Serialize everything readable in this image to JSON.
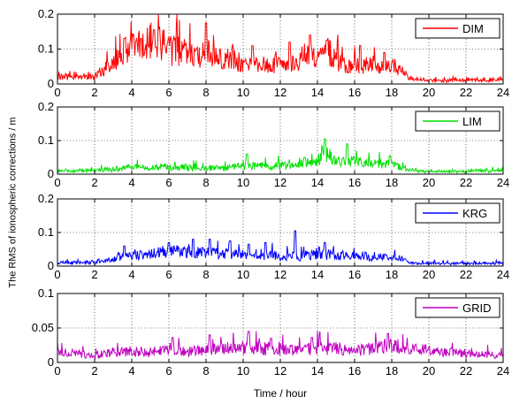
{
  "figure": {
    "ylabel": "The RMS of ionospheric corrections / m",
    "xlabel": "Time / hour"
  },
  "chart_data": [
    {
      "type": "line",
      "series": [
        {
          "name": "DIM",
          "color": "#ff0000"
        }
      ],
      "xlim": [
        0,
        24
      ],
      "ylim": [
        0,
        0.2
      ],
      "xticks": [
        0,
        2,
        4,
        6,
        8,
        10,
        12,
        14,
        16,
        18,
        20,
        22,
        24
      ],
      "yticks": [
        0,
        0.1,
        0.2
      ],
      "ytick_labels": [
        "0",
        "0.1",
        "0.2"
      ],
      "grid": true,
      "legend_position": "top-right",
      "envelope": [
        [
          0,
          0.02
        ],
        [
          1,
          0.02
        ],
        [
          2,
          0.02
        ],
        [
          2.5,
          0.04
        ],
        [
          3,
          0.06
        ],
        [
          3.5,
          0.1
        ],
        [
          4,
          0.1
        ],
        [
          4.5,
          0.11
        ],
        [
          5,
          0.13
        ],
        [
          5.5,
          0.12
        ],
        [
          6,
          0.1
        ],
        [
          6.5,
          0.09
        ],
        [
          7,
          0.09
        ],
        [
          7.5,
          0.07
        ],
        [
          8,
          0.1
        ],
        [
          8.5,
          0.08
        ],
        [
          9,
          0.07
        ],
        [
          9.5,
          0.08
        ],
        [
          10,
          0.05
        ],
        [
          10.5,
          0.06
        ],
        [
          11,
          0.06
        ],
        [
          11.5,
          0.05
        ],
        [
          12,
          0.06
        ],
        [
          12.5,
          0.05
        ],
        [
          13,
          0.07
        ],
        [
          13.5,
          0.09
        ],
        [
          14,
          0.06
        ],
        [
          14.5,
          0.1
        ],
        [
          15,
          0.07
        ],
        [
          15.5,
          0.05
        ],
        [
          16,
          0.06
        ],
        [
          16.5,
          0.05
        ],
        [
          17,
          0.06
        ],
        [
          17.5,
          0.05
        ],
        [
          18,
          0.05
        ],
        [
          18.5,
          0.04
        ],
        [
          19,
          0.015
        ],
        [
          20,
          0.01
        ],
        [
          21,
          0.01
        ],
        [
          22,
          0.012
        ],
        [
          23,
          0.012
        ],
        [
          24,
          0.013
        ]
      ],
      "spikes": [
        [
          3.6,
          0.13
        ],
        [
          4.5,
          0.13
        ],
        [
          5.2,
          0.155
        ],
        [
          8,
          0.175
        ],
        [
          10.5,
          0.11
        ],
        [
          12.5,
          0.12
        ],
        [
          13.6,
          0.14
        ],
        [
          14.5,
          0.125
        ],
        [
          16.3,
          0.11
        ],
        [
          17.6,
          0.09
        ]
      ]
    },
    {
      "type": "line",
      "series": [
        {
          "name": "LIM",
          "color": "#00e000"
        }
      ],
      "xlim": [
        0,
        24
      ],
      "ylim": [
        0,
        0.2
      ],
      "xticks": [
        0,
        2,
        4,
        6,
        8,
        10,
        12,
        14,
        16,
        18,
        20,
        22,
        24
      ],
      "yticks": [
        0,
        0.1,
        0.2
      ],
      "ytick_labels": [
        "0",
        "0.1",
        "0.2"
      ],
      "grid": true,
      "legend_position": "top-right",
      "envelope": [
        [
          0,
          0.01
        ],
        [
          1,
          0.01
        ],
        [
          2,
          0.012
        ],
        [
          3,
          0.015
        ],
        [
          4,
          0.02
        ],
        [
          5,
          0.02
        ],
        [
          6,
          0.02
        ],
        [
          7,
          0.02
        ],
        [
          8,
          0.018
        ],
        [
          9,
          0.018
        ],
        [
          10,
          0.025
        ],
        [
          11,
          0.025
        ],
        [
          12,
          0.025
        ],
        [
          13,
          0.03
        ],
        [
          14,
          0.04
        ],
        [
          14.5,
          0.06
        ],
        [
          15,
          0.04
        ],
        [
          16,
          0.035
        ],
        [
          17,
          0.03
        ],
        [
          18,
          0.03
        ],
        [
          19,
          0.01
        ],
        [
          20,
          0.008
        ],
        [
          21,
          0.008
        ],
        [
          22,
          0.008
        ],
        [
          23,
          0.01
        ],
        [
          24,
          0.01
        ]
      ],
      "spikes": [
        [
          14.4,
          0.105
        ],
        [
          15.6,
          0.09
        ],
        [
          10.2,
          0.06
        ],
        [
          17.9,
          0.055
        ],
        [
          13.3,
          0.05
        ]
      ]
    },
    {
      "type": "line",
      "series": [
        {
          "name": "KRG",
          "color": "#0000ff"
        }
      ],
      "xlim": [
        0,
        24
      ],
      "ylim": [
        0,
        0.2
      ],
      "xticks": [
        0,
        2,
        4,
        6,
        8,
        10,
        12,
        14,
        16,
        18,
        20,
        22,
        24
      ],
      "yticks": [
        0,
        0.1,
        0.2
      ],
      "ytick_labels": [
        "0",
        "0.1",
        "0.2"
      ],
      "grid": true,
      "legend_position": "top-right",
      "envelope": [
        [
          0,
          0.01
        ],
        [
          1,
          0.01
        ],
        [
          2,
          0.012
        ],
        [
          3,
          0.02
        ],
        [
          3.5,
          0.03
        ],
        [
          4,
          0.03
        ],
        [
          5,
          0.035
        ],
        [
          6,
          0.045
        ],
        [
          7,
          0.04
        ],
        [
          8,
          0.04
        ],
        [
          9,
          0.035
        ],
        [
          10,
          0.035
        ],
        [
          11,
          0.03
        ],
        [
          12,
          0.03
        ],
        [
          13,
          0.03
        ],
        [
          14,
          0.035
        ],
        [
          15,
          0.035
        ],
        [
          16,
          0.03
        ],
        [
          17,
          0.03
        ],
        [
          18,
          0.03
        ],
        [
          19,
          0.01
        ],
        [
          20,
          0.008
        ],
        [
          21,
          0.008
        ],
        [
          22,
          0.008
        ],
        [
          23,
          0.008
        ],
        [
          24,
          0.01
        ]
      ],
      "spikes": [
        [
          12.8,
          0.105
        ],
        [
          8.2,
          0.08
        ],
        [
          7.3,
          0.08
        ],
        [
          9.3,
          0.075
        ],
        [
          11.2,
          0.07
        ],
        [
          6,
          0.07
        ],
        [
          14.4,
          0.07
        ],
        [
          10.3,
          0.065
        ],
        [
          3.6,
          0.06
        ]
      ]
    },
    {
      "type": "line",
      "series": [
        {
          "name": "GRID",
          "color": "#c000c0"
        }
      ],
      "xlim": [
        0,
        24
      ],
      "ylim": [
        0,
        0.1
      ],
      "xticks": [
        0,
        2,
        4,
        6,
        8,
        10,
        12,
        14,
        16,
        18,
        20,
        22,
        24
      ],
      "yticks": [
        0,
        0.05,
        0.1
      ],
      "ytick_labels": [
        "0",
        "0.05",
        "0.1"
      ],
      "grid": true,
      "legend_position": "top-right",
      "envelope": [
        [
          0,
          0.015
        ],
        [
          1,
          0.012
        ],
        [
          2,
          0.01
        ],
        [
          3,
          0.015
        ],
        [
          4,
          0.015
        ],
        [
          5,
          0.015
        ],
        [
          6,
          0.018
        ],
        [
          7,
          0.015
        ],
        [
          8,
          0.018
        ],
        [
          9,
          0.02
        ],
        [
          10,
          0.022
        ],
        [
          11,
          0.02
        ],
        [
          12,
          0.018
        ],
        [
          13,
          0.018
        ],
        [
          14,
          0.02
        ],
        [
          15,
          0.02
        ],
        [
          16,
          0.018
        ],
        [
          17,
          0.02
        ],
        [
          18,
          0.025
        ],
        [
          19,
          0.02
        ],
        [
          20,
          0.018
        ],
        [
          21,
          0.015
        ],
        [
          22,
          0.012
        ],
        [
          23,
          0.012
        ],
        [
          24,
          0.01
        ]
      ],
      "spikes": [
        [
          10.3,
          0.045
        ],
        [
          17.8,
          0.042
        ],
        [
          8.2,
          0.04
        ],
        [
          6.2,
          0.036
        ],
        [
          13.7,
          0.036
        ],
        [
          11.5,
          0.035
        ]
      ]
    }
  ]
}
